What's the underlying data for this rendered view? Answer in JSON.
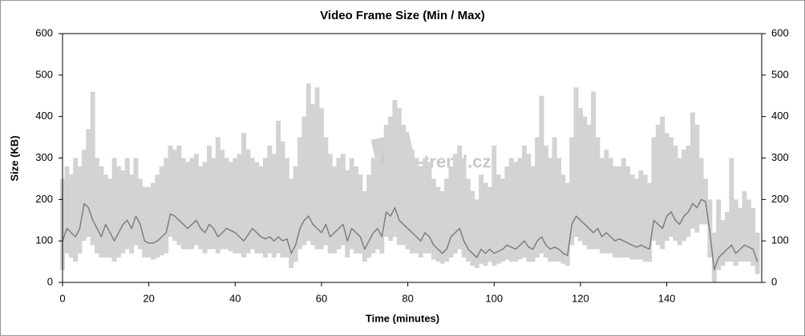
{
  "chart_data": {
    "type": "line",
    "title": "Video Frame Size (Min / Max)",
    "y_label": "Size (KB)",
    "x_label": "Time (minutes)",
    "annotation": "Film-trend.cz",
    "xlim": [
      0,
      162
    ],
    "xticks": [
      0,
      20,
      40,
      60,
      80,
      100,
      120,
      140
    ],
    "ylim": [
      0,
      600
    ],
    "yticks": [
      0,
      100,
      200,
      300,
      400,
      500,
      600
    ],
    "y2lim": [
      0,
      600
    ],
    "y2ticks": [
      0,
      100,
      200,
      300,
      400,
      500,
      600
    ],
    "x": [
      0,
      1,
      2,
      3,
      4,
      5,
      6,
      7,
      8,
      9,
      10,
      11,
      12,
      13,
      14,
      15,
      16,
      17,
      18,
      19,
      20,
      21,
      22,
      23,
      24,
      25,
      26,
      27,
      28,
      29,
      30,
      31,
      32,
      33,
      34,
      35,
      36,
      37,
      38,
      39,
      40,
      41,
      42,
      43,
      44,
      45,
      46,
      47,
      48,
      49,
      50,
      51,
      52,
      53,
      54,
      55,
      56,
      57,
      58,
      59,
      60,
      61,
      62,
      63,
      64,
      65,
      66,
      67,
      68,
      69,
      70,
      71,
      72,
      73,
      74,
      75,
      76,
      77,
      78,
      79,
      80,
      81,
      82,
      83,
      84,
      85,
      86,
      87,
      88,
      89,
      90,
      91,
      92,
      93,
      94,
      95,
      96,
      97,
      98,
      99,
      100,
      101,
      102,
      103,
      104,
      105,
      106,
      107,
      108,
      109,
      110,
      111,
      112,
      113,
      114,
      115,
      116,
      117,
      118,
      119,
      120,
      121,
      122,
      123,
      124,
      125,
      126,
      127,
      128,
      129,
      130,
      131,
      132,
      133,
      134,
      135,
      136,
      137,
      138,
      139,
      140,
      141,
      142,
      143,
      144,
      145,
      146,
      147,
      148,
      149,
      150,
      151,
      152,
      153,
      154,
      155,
      156,
      157,
      158,
      159,
      160,
      161
    ],
    "series": [
      {
        "color": "#d3d3d3",
        "values": [
          250,
          280,
          260,
          300,
          280,
          320,
          370,
          460,
          300,
          280,
          260,
          250,
          300,
          280,
          270,
          300,
          260,
          300,
          250,
          230,
          230,
          240,
          260,
          280,
          300,
          330,
          320,
          330,
          300,
          290,
          300,
          310,
          280,
          290,
          330,
          300,
          350,
          320,
          300,
          290,
          300,
          310,
          360,
          320,
          300,
          290,
          280,
          300,
          330,
          310,
          390,
          340,
          300,
          250,
          280,
          350,
          400,
          480,
          430,
          470,
          420,
          350,
          310,
          280,
          300,
          310,
          270,
          300,
          280,
          260,
          220,
          260,
          300,
          320,
          290,
          380,
          400,
          440,
          420,
          380,
          350,
          320,
          300,
          280,
          300,
          290,
          250,
          230,
          220,
          250,
          280,
          310,
          330,
          300,
          250,
          220,
          200,
          260,
          240,
          230,
          330,
          260,
          250,
          280,
          300,
          290,
          300,
          330,
          310,
          280,
          350,
          450,
          330,
          300,
          350,
          300,
          260,
          240,
          350,
          470,
          420,
          400,
          380,
          460,
          350,
          300,
          320,
          300,
          280,
          280,
          300,
          280,
          260,
          250,
          270,
          260,
          240,
          350,
          380,
          400,
          360,
          350,
          330,
          300,
          320,
          330,
          410,
          380,
          300,
          250,
          200,
          120,
          200,
          150,
          170,
          300,
          200,
          180,
          220,
          200,
          180,
          120
        ],
        "low": [
          30,
          70,
          60,
          50,
          70,
          100,
          110,
          90,
          70,
          60,
          60,
          60,
          50,
          60,
          70,
          80,
          70,
          90,
          80,
          60,
          60,
          55,
          60,
          65,
          70,
          110,
          100,
          90,
          80,
          80,
          80,
          90,
          80,
          70,
          80,
          80,
          70,
          80,
          80,
          75,
          70,
          70,
          60,
          70,
          80,
          70,
          70,
          60,
          70,
          60,
          70,
          60,
          60,
          35,
          50,
          80,
          90,
          100,
          90,
          80,
          80,
          90,
          70,
          70,
          80,
          90,
          60,
          80,
          70,
          70,
          50,
          60,
          70,
          80,
          70,
          110,
          100,
          110,
          90,
          90,
          80,
          70,
          70,
          60,
          70,
          70,
          55,
          50,
          45,
          50,
          60,
          70,
          80,
          60,
          50,
          40,
          35,
          45,
          40,
          50,
          40,
          45,
          50,
          55,
          50,
          50,
          55,
          60,
          50,
          50,
          60,
          70,
          60,
          50,
          50,
          50,
          45,
          40,
          90,
          110,
          100,
          90,
          80,
          80,
          80,
          70,
          70,
          70,
          60,
          60,
          60,
          60,
          55,
          55,
          55,
          50,
          50,
          100,
          90,
          80,
          100,
          110,
          100,
          90,
          100,
          110,
          130,
          120,
          140,
          140,
          60,
          0,
          30,
          40,
          50,
          50,
          40,
          50,
          50,
          50,
          40,
          20
        ]
      },
      {
        "color": "#7f7f7f",
        "values": [
          100,
          130,
          120,
          110,
          130,
          190,
          180,
          150,
          130,
          110,
          140,
          120,
          100,
          120,
          140,
          150,
          130,
          160,
          140,
          100,
          95,
          95,
          100,
          110,
          120,
          165,
          160,
          150,
          140,
          130,
          140,
          150,
          130,
          120,
          140,
          130,
          110,
          120,
          130,
          125,
          120,
          110,
          100,
          115,
          130,
          120,
          110,
          105,
          110,
          100,
          110,
          100,
          105,
          70,
          90,
          130,
          150,
          160,
          140,
          130,
          120,
          140,
          110,
          120,
          130,
          140,
          100,
          130,
          120,
          110,
          80,
          100,
          120,
          130,
          110,
          170,
          160,
          180,
          150,
          140,
          130,
          120,
          110,
          100,
          120,
          110,
          90,
          80,
          70,
          80,
          110,
          120,
          130,
          100,
          80,
          70,
          60,
          80,
          70,
          80,
          70,
          75,
          80,
          90,
          85,
          80,
          90,
          100,
          85,
          80,
          100,
          110,
          90,
          80,
          85,
          80,
          70,
          65,
          140,
          160,
          150,
          140,
          130,
          120,
          130,
          110,
          120,
          110,
          100,
          105,
          100,
          95,
          90,
          85,
          90,
          85,
          80,
          150,
          140,
          130,
          160,
          170,
          150,
          140,
          160,
          170,
          190,
          180,
          200,
          195,
          120,
          30,
          60,
          70,
          80,
          90,
          70,
          80,
          90,
          85,
          80,
          50
        ]
      }
    ]
  }
}
